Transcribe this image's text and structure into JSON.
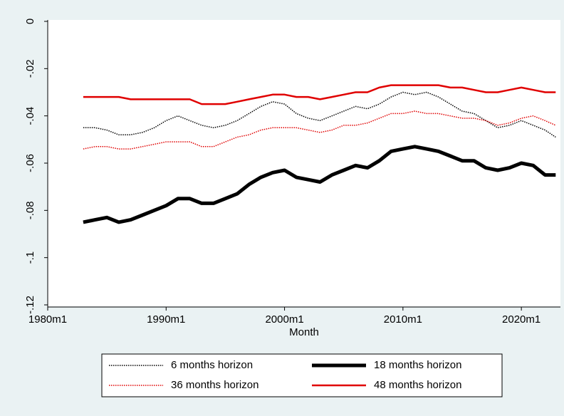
{
  "chart_data": {
    "type": "line",
    "x_label": "Month",
    "x": [
      1983,
      1984,
      1985,
      1986,
      1987,
      1988,
      1989,
      1990,
      1991,
      1992,
      1993,
      1994,
      1995,
      1996,
      1997,
      1998,
      1999,
      2000,
      2001,
      2002,
      2003,
      2004,
      2005,
      2006,
      2007,
      2008,
      2009,
      2010,
      2011,
      2012,
      2013,
      2014,
      2015,
      2016,
      2017,
      2018,
      2019,
      2020,
      2021,
      2022,
      2022.9
    ],
    "xlim": [
      1980,
      2023.3
    ],
    "xticks": [
      {
        "value": 1980,
        "label": "1980m1"
      },
      {
        "value": 1990,
        "label": "1990m1"
      },
      {
        "value": 2000,
        "label": "2000m1"
      },
      {
        "value": 2010,
        "label": "2010m1"
      },
      {
        "value": 2020,
        "label": "2020m1"
      }
    ],
    "ylim": [
      -0.12,
      0
    ],
    "yticks": [
      {
        "value": 0,
        "label": "0"
      },
      {
        "value": -0.02,
        "label": "-.02"
      },
      {
        "value": -0.04,
        "label": "-.04"
      },
      {
        "value": -0.06,
        "label": "-.06"
      },
      {
        "value": -0.08,
        "label": "-.08"
      },
      {
        "value": -0.1,
        "label": "-.1"
      },
      {
        "value": -0.12,
        "label": "-.12"
      }
    ],
    "legend": "bottom",
    "series": [
      {
        "name": "6 months horizon",
        "color": "#000000",
        "style": "dotted",
        "width": 1.5,
        "values": [
          -0.045,
          -0.045,
          -0.046,
          -0.048,
          -0.048,
          -0.047,
          -0.045,
          -0.042,
          -0.04,
          -0.042,
          -0.044,
          -0.045,
          -0.044,
          -0.042,
          -0.039,
          -0.036,
          -0.034,
          -0.035,
          -0.039,
          -0.041,
          -0.042,
          -0.04,
          -0.038,
          -0.036,
          -0.037,
          -0.035,
          -0.032,
          -0.03,
          -0.031,
          -0.03,
          -0.032,
          -0.035,
          -0.038,
          -0.039,
          -0.042,
          -0.045,
          -0.044,
          -0.042,
          -0.044,
          -0.046,
          -0.049
        ]
      },
      {
        "name": "18 months horizon",
        "color": "#000000",
        "style": "solid",
        "width": 5,
        "values": [
          -0.085,
          -0.084,
          -0.083,
          -0.085,
          -0.084,
          -0.082,
          -0.08,
          -0.078,
          -0.075,
          -0.075,
          -0.077,
          -0.077,
          -0.075,
          -0.073,
          -0.069,
          -0.066,
          -0.064,
          -0.063,
          -0.066,
          -0.067,
          -0.068,
          -0.065,
          -0.063,
          -0.061,
          -0.062,
          -0.059,
          -0.055,
          -0.054,
          -0.053,
          -0.054,
          -0.055,
          -0.057,
          -0.059,
          -0.059,
          -0.062,
          -0.063,
          -0.062,
          -0.06,
          -0.061,
          -0.065,
          -0.065
        ]
      },
      {
        "name": "36 months horizon",
        "color": "#e00000",
        "style": "dotted",
        "width": 1.5,
        "values": [
          -0.054,
          -0.053,
          -0.053,
          -0.054,
          -0.054,
          -0.053,
          -0.052,
          -0.051,
          -0.051,
          -0.051,
          -0.053,
          -0.053,
          -0.051,
          -0.049,
          -0.048,
          -0.046,
          -0.045,
          -0.045,
          -0.045,
          -0.046,
          -0.047,
          -0.046,
          -0.044,
          -0.044,
          -0.043,
          -0.041,
          -0.039,
          -0.039,
          -0.038,
          -0.039,
          -0.039,
          -0.04,
          -0.041,
          -0.041,
          -0.042,
          -0.044,
          -0.043,
          -0.041,
          -0.04,
          -0.042,
          -0.044
        ]
      },
      {
        "name": "48 months horizon",
        "color": "#e00000",
        "style": "solid",
        "width": 2.5,
        "values": [
          -0.032,
          -0.032,
          -0.032,
          -0.032,
          -0.033,
          -0.033,
          -0.033,
          -0.033,
          -0.033,
          -0.033,
          -0.035,
          -0.035,
          -0.035,
          -0.034,
          -0.033,
          -0.032,
          -0.031,
          -0.031,
          -0.032,
          -0.032,
          -0.033,
          -0.032,
          -0.031,
          -0.03,
          -0.03,
          -0.028,
          -0.027,
          -0.027,
          -0.027,
          -0.027,
          -0.027,
          -0.028,
          -0.028,
          -0.029,
          -0.03,
          -0.03,
          -0.029,
          -0.028,
          -0.029,
          -0.03,
          -0.03
        ]
      }
    ]
  }
}
